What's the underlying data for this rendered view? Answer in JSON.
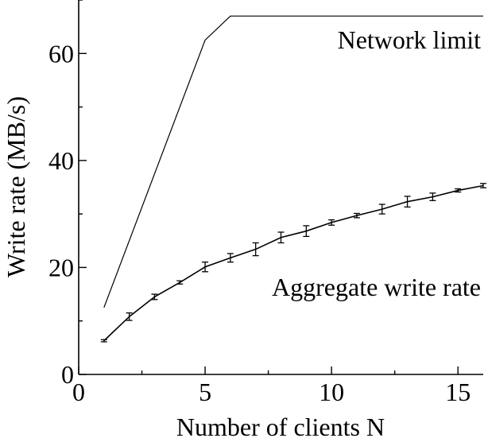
{
  "chart_data": {
    "type": "line",
    "xlabel": "Number of clients N",
    "ylabel": "Write rate (MB/s)",
    "xlim": [
      0,
      16
    ],
    "ylim": [
      0,
      70
    ],
    "xticks": [
      0,
      5,
      10,
      15
    ],
    "yticks": [
      0,
      20,
      40,
      60
    ],
    "xtick_labels": [
      "0",
      "5",
      "10",
      "15"
    ],
    "ytick_labels": [
      "0",
      "20",
      "40",
      "60"
    ],
    "grid": false,
    "series": [
      {
        "name": "Network limit",
        "x": [
          1,
          5,
          6,
          16
        ],
        "y": [
          12.5,
          62.5,
          67,
          67
        ],
        "error": null
      },
      {
        "name": "Aggregate write rate",
        "x": [
          1,
          2,
          3,
          4,
          5,
          6,
          7,
          8,
          9,
          10,
          11,
          12,
          13,
          14,
          15,
          16
        ],
        "y": [
          6.3,
          10.8,
          14.5,
          17.2,
          20.1,
          21.8,
          23.4,
          25.6,
          26.8,
          28.4,
          29.7,
          30.9,
          32.3,
          33.2,
          34.4,
          35.3
        ],
        "error": [
          0.2,
          0.7,
          0.5,
          0.3,
          0.9,
          0.8,
          1.2,
          1.0,
          1.0,
          0.5,
          0.4,
          0.9,
          1.0,
          0.7,
          0.3,
          0.4
        ]
      }
    ],
    "annotations": [
      "Network limit",
      "Aggregate write rate"
    ]
  }
}
